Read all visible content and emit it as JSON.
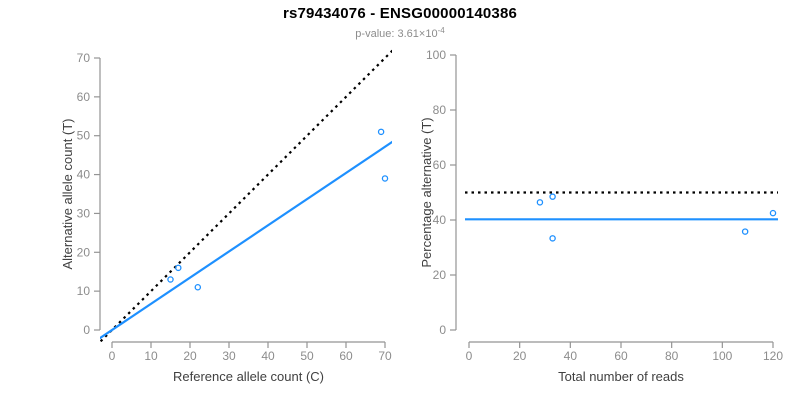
{
  "figure": {
    "title": "rs79434076 - ENSG00000140386",
    "subtitle": {
      "text": "p-value: 3.61×10",
      "exponent": "-4"
    }
  },
  "colors": {
    "point_and_fit_blue": "#1E90FF",
    "identity_black": "#000000",
    "axis_line": "#949494",
    "tick_label": "#8C8C8C",
    "axis_title": "#404040",
    "title": "#000000",
    "subtitle": "#8C8C8C"
  },
  "chart_data": [
    {
      "type": "scatter",
      "name": "allele-count-scatter",
      "xlabel": "Reference allele count (C)",
      "ylabel": "Alternative allele count (T)",
      "xlim": [
        0,
        70
      ],
      "ylim": [
        0,
        70
      ],
      "xticks": [
        0,
        10,
        20,
        30,
        40,
        50,
        60,
        70
      ],
      "yticks": [
        0,
        10,
        20,
        30,
        40,
        50,
        60,
        70
      ],
      "grid": false,
      "points": [
        [
          15,
          13
        ],
        [
          17,
          16
        ],
        [
          22,
          11
        ],
        [
          69,
          51
        ],
        [
          70,
          39
        ]
      ],
      "lines": [
        {
          "name": "identity-line",
          "kind": "abline",
          "slope": 1,
          "intercept": 0,
          "style": "dotted",
          "color": "#000000",
          "desc": "y = x reference"
        },
        {
          "name": "fit-line",
          "kind": "abline",
          "slope": 0.6736,
          "intercept": 0,
          "style": "solid",
          "color": "#1E90FF",
          "desc": "fitted allelic ratio"
        }
      ]
    },
    {
      "type": "scatter",
      "name": "percentage-alternative-scatter",
      "xlabel": "Total number of reads",
      "ylabel": "Percentage alternative (T)",
      "xlim": [
        0,
        120
      ],
      "ylim": [
        0,
        100
      ],
      "xticks": [
        0,
        20,
        40,
        60,
        80,
        100,
        120
      ],
      "yticks": [
        0,
        20,
        40,
        60,
        80,
        100
      ],
      "grid": false,
      "points": [
        [
          28,
          46.43
        ],
        [
          33,
          48.48
        ],
        [
          33,
          33.33
        ],
        [
          109,
          35.78
        ],
        [
          120,
          42.5
        ]
      ],
      "lines": [
        {
          "name": "expected-50pct-line",
          "kind": "hline",
          "y": 50,
          "style": "dotted",
          "color": "#000000",
          "desc": "50% expectation"
        },
        {
          "name": "mean-percentage-line",
          "kind": "hline",
          "y": 40.25,
          "style": "solid",
          "color": "#1E90FF",
          "desc": "observed mean 40.25%"
        }
      ]
    }
  ]
}
